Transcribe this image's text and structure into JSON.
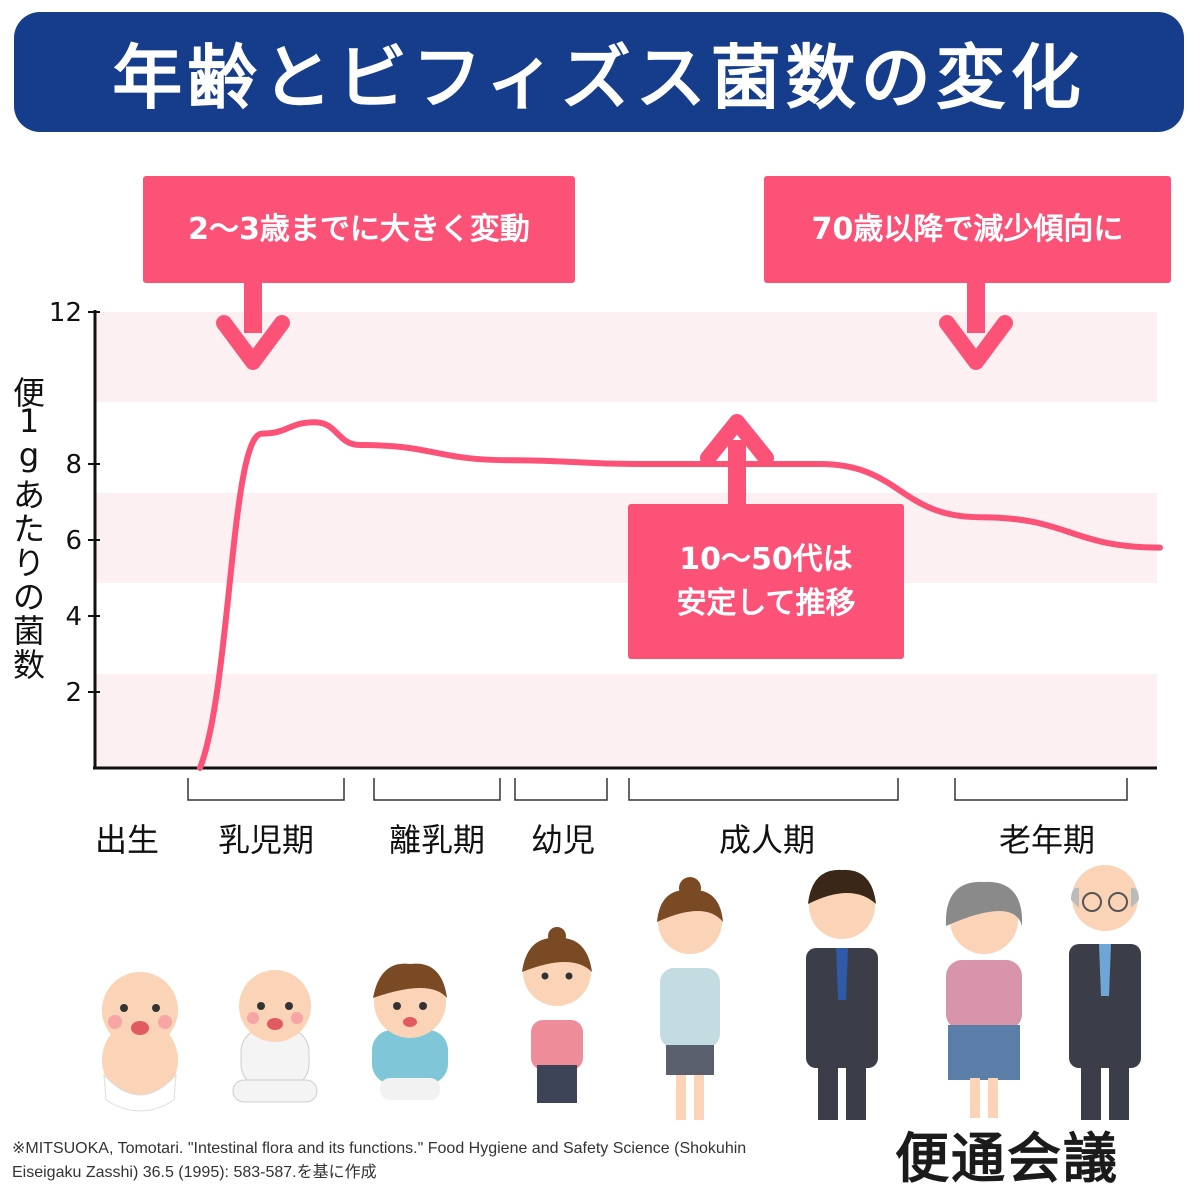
{
  "title": "年齢とビフィズス菌数の変化",
  "callouts": {
    "early": "2〜3歳までに大きく変動",
    "elderly": "70歳以降で減少傾向に",
    "stable_line1": "10〜50代は",
    "stable_line2": "安定して推移"
  },
  "ylabel_chars": [
    "便",
    "1",
    "g",
    "あ",
    "た",
    "り",
    "の",
    "菌",
    "数"
  ],
  "stages": {
    "birth": "出生",
    "infant": "乳児期",
    "weaning": "離乳期",
    "toddler": "幼児",
    "adult": "成人期",
    "elderly": "老年期"
  },
  "footnote_line1": "※MITSUOKA, Tomotari. \"Intestinal flora and its functions.\" Food Hygiene and Safety Science (Shokuhin",
  "footnote_line2": "Eiseigaku Zasshi) 36.5 (1995): 583-587.を基に作成",
  "logo": "便通会議",
  "colors": {
    "banner": "#163d8c",
    "accent": "#fc5277",
    "band": "#fdf0f2"
  },
  "chart_data": {
    "type": "line",
    "title": "年齢とビフィズス菌数の変化",
    "ylabel": "便1gあたりの菌数",
    "xlabel": "",
    "ylim": [
      0,
      12
    ],
    "yticks": [
      2,
      4,
      6,
      8,
      12
    ],
    "x_categories": [
      "出生",
      "乳児期",
      "離乳期",
      "幼児",
      "成人期",
      "老年期"
    ],
    "grid": false,
    "series": [
      {
        "points": [
          {
            "stage": "出生",
            "y": 0
          },
          {
            "stage": "乳児期",
            "y": 8.8
          },
          {
            "stage": "乳児期",
            "y": 9.1
          },
          {
            "stage": "離乳期",
            "y": 8.5
          },
          {
            "stage": "幼児",
            "y": 8.1
          },
          {
            "stage": "成人期",
            "y": 8.0
          },
          {
            "stage": "成人期",
            "y": 8.0
          },
          {
            "stage": "老年期",
            "y": 6.6
          },
          {
            "stage": "老年期",
            "y": 5.8
          }
        ]
      }
    ]
  }
}
